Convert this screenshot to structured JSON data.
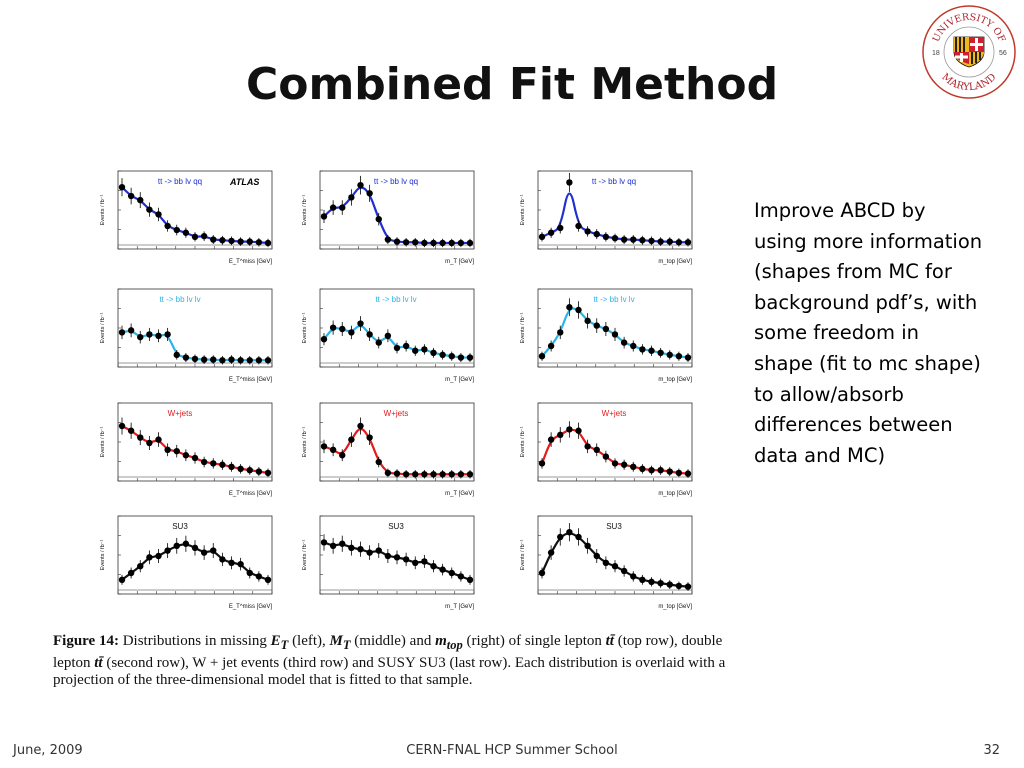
{
  "title": "Combined Fit Method",
  "logo": {
    "top_text": "UNIVERSITY OF",
    "bottom_text": "MARYLAND",
    "year_left": "18",
    "year_right": "56",
    "colors": {
      "red": "#cf1f2e",
      "gold": "#f2b81b",
      "black": "#111111"
    }
  },
  "bullet_text": "Improve ABCD by using more information (shapes from MC for background pdf’s, with some freedom in shape (fit to mc shape) to allow/absorb differences between data and MC)",
  "caption": {
    "figure_label": "Figure 14:",
    "part1": "Distributions in missing",
    "et": "E",
    "et_sub": "T",
    "part2": "(left),",
    "mt": "M",
    "mt_sub": "T",
    "part3": "(middle) and",
    "mtop": "m",
    "mtop_sub": "top",
    "part4": "(right) of single lepton",
    "tt1": "tt̄",
    "part5": "(top row), double lepton",
    "tt2": "tt̄",
    "part6": "(second row), W + jet events (third row) and SUSY SU3 (last row). Each distribution is overlaid with a projection of the three-dimensional model that is fitted to that sample."
  },
  "footer": {
    "date": "June, 2009",
    "event": "CERN-FNAL HCP Summer School",
    "page": "32"
  },
  "chart_data": {
    "type": "scatter",
    "rows": [
      {
        "label": "tt -> bb lv qq",
        "color": "#1f2fd0"
      },
      {
        "label": "tt -> bb lv lv",
        "color": "#2cb4e8"
      },
      {
        "label": "W+jets",
        "color": "#e51a1a"
      },
      {
        "label": "SU3",
        "color": "#111111"
      }
    ],
    "columns": [
      {
        "xlabel": "E_T^miss [GeV]"
      },
      {
        "xlabel": "m_T [GeV]"
      },
      {
        "xlabel": "m_top [GeV]"
      }
    ],
    "ylabel": "Events / fb⁻¹",
    "atlas_tag": "ATLAS",
    "panels": [
      {
        "row": 0,
        "col": 0,
        "points": [
          0.85,
          0.72,
          0.66,
          0.52,
          0.45,
          0.28,
          0.22,
          0.18,
          0.12,
          0.13,
          0.08,
          0.07,
          0.06,
          0.05,
          0.05,
          0.04,
          0.03
        ]
      },
      {
        "row": 0,
        "col": 1,
        "points": [
          0.42,
          0.55,
          0.55,
          0.7,
          0.88,
          0.76,
          0.38,
          0.08,
          0.05,
          0.04,
          0.04,
          0.03,
          0.03,
          0.03,
          0.03,
          0.03,
          0.03
        ]
      },
      {
        "row": 0,
        "col": 2,
        "points": [
          0.12,
          0.18,
          0.25,
          0.92,
          0.28,
          0.2,
          0.16,
          0.12,
          0.1,
          0.08,
          0.08,
          0.07,
          0.06,
          0.05,
          0.05,
          0.04,
          0.04
        ]
      },
      {
        "row": 1,
        "col": 0,
        "points": [
          0.45,
          0.48,
          0.38,
          0.42,
          0.4,
          0.42,
          0.12,
          0.08,
          0.06,
          0.05,
          0.05,
          0.04,
          0.05,
          0.04,
          0.04,
          0.04,
          0.04
        ]
      },
      {
        "row": 1,
        "col": 1,
        "points": [
          0.35,
          0.52,
          0.5,
          0.45,
          0.58,
          0.42,
          0.3,
          0.4,
          0.22,
          0.25,
          0.18,
          0.2,
          0.15,
          0.12,
          0.1,
          0.08,
          0.08
        ]
      },
      {
        "row": 1,
        "col": 2,
        "points": [
          0.1,
          0.25,
          0.45,
          0.82,
          0.78,
          0.62,
          0.55,
          0.5,
          0.42,
          0.3,
          0.25,
          0.2,
          0.18,
          0.15,
          0.12,
          0.1,
          0.08
        ]
      },
      {
        "row": 2,
        "col": 0,
        "points": [
          0.75,
          0.68,
          0.58,
          0.5,
          0.55,
          0.4,
          0.38,
          0.32,
          0.28,
          0.22,
          0.2,
          0.18,
          0.15,
          0.12,
          0.1,
          0.08,
          0.06
        ]
      },
      {
        "row": 2,
        "col": 1,
        "points": [
          0.45,
          0.4,
          0.32,
          0.55,
          0.75,
          0.58,
          0.22,
          0.06,
          0.05,
          0.04,
          0.04,
          0.04,
          0.04,
          0.04,
          0.04,
          0.04,
          0.04
        ]
      },
      {
        "row": 2,
        "col": 2,
        "points": [
          0.2,
          0.55,
          0.62,
          0.7,
          0.68,
          0.45,
          0.4,
          0.3,
          0.2,
          0.18,
          0.15,
          0.12,
          0.1,
          0.1,
          0.08,
          0.06,
          0.05
        ]
      },
      {
        "row": 3,
        "col": 0,
        "points": [
          0.15,
          0.25,
          0.35,
          0.48,
          0.5,
          0.58,
          0.65,
          0.68,
          0.62,
          0.55,
          0.58,
          0.45,
          0.4,
          0.38,
          0.25,
          0.2,
          0.15
        ]
      },
      {
        "row": 3,
        "col": 1,
        "points": [
          0.7,
          0.65,
          0.68,
          0.62,
          0.6,
          0.55,
          0.58,
          0.5,
          0.48,
          0.45,
          0.4,
          0.42,
          0.35,
          0.3,
          0.25,
          0.2,
          0.15
        ]
      },
      {
        "row": 3,
        "col": 2,
        "points": [
          0.25,
          0.55,
          0.78,
          0.85,
          0.78,
          0.65,
          0.5,
          0.4,
          0.35,
          0.28,
          0.2,
          0.15,
          0.12,
          0.1,
          0.08,
          0.06,
          0.05
        ]
      }
    ]
  }
}
